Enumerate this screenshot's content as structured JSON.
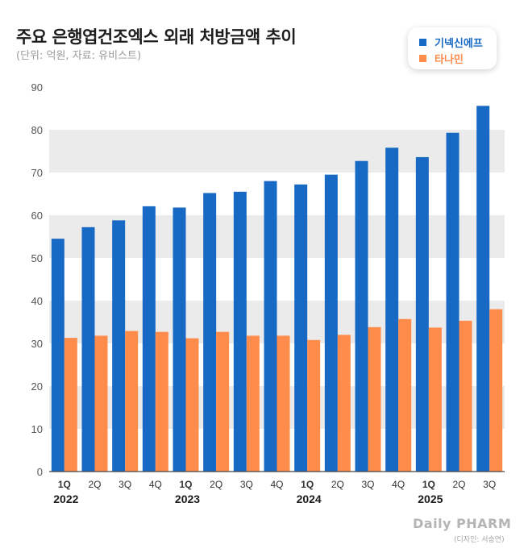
{
  "title": "주요 은행엽건조엑스 외래 처방금액 추이",
  "subtitle": "(단위: 억원, 자료: 유비스트)",
  "logo_text": "Daily PHARM",
  "credit": "(디자인: 서승연)",
  "colors": {
    "series1": "#1769c4",
    "series2": "#ff8c4a",
    "band": "#ebebeb"
  },
  "chart_data": {
    "type": "bar",
    "ylim": [
      0,
      90
    ],
    "yticks": [
      0,
      10,
      20,
      30,
      40,
      50,
      60,
      70,
      80,
      90
    ],
    "categories": [
      "1Q",
      "2Q",
      "3Q",
      "4Q",
      "1Q",
      "2Q",
      "3Q",
      "4Q",
      "1Q",
      "2Q",
      "3Q",
      "4Q",
      "1Q",
      "2Q",
      "3Q"
    ],
    "years": [
      {
        "label": "2022",
        "start": 0
      },
      {
        "label": "2023",
        "start": 4
      },
      {
        "label": "2024",
        "start": 8
      },
      {
        "label": "2025",
        "start": 12
      }
    ],
    "series": [
      {
        "name": "기넥신에프",
        "values": [
          54.5,
          57.2,
          58.8,
          62.1,
          61.8,
          65.2,
          65.5,
          68.0,
          67.2,
          69.5,
          72.7,
          75.8,
          73.6,
          79.3,
          85.6
        ]
      },
      {
        "name": "타나민",
        "values": [
          31.3,
          31.8,
          32.9,
          32.7,
          31.2,
          32.7,
          31.8,
          31.8,
          30.8,
          32.0,
          33.8,
          35.7,
          33.7,
          35.3,
          38.0
        ]
      }
    ]
  }
}
